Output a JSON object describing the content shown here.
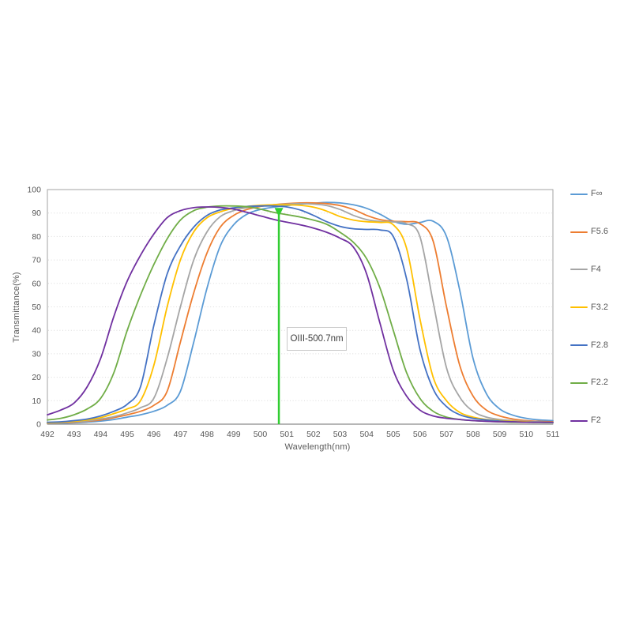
{
  "chart_data": {
    "type": "line",
    "title": "",
    "xlabel": "Wavelength(nm)",
    "ylabel": "Transmittance(%)",
    "xlim": [
      492,
      511
    ],
    "ylim": [
      0,
      100
    ],
    "x_ticks": [
      492,
      493,
      494,
      495,
      496,
      497,
      498,
      499,
      500,
      501,
      502,
      503,
      504,
      505,
      506,
      507,
      508,
      509,
      510,
      511
    ],
    "y_ticks": [
      0,
      10,
      20,
      30,
      40,
      50,
      60,
      70,
      80,
      90,
      100
    ],
    "grid": "horizontal-dotted",
    "legend_position": "right",
    "x_start": 492,
    "x_step": 0.5,
    "series": [
      {
        "name": "F∞",
        "color": "#5B9BD5",
        "values": [
          0.3,
          0.4,
          0.6,
          0.9,
          1.3,
          2,
          3,
          4,
          5.5,
          8,
          14,
          35,
          58,
          76,
          85,
          89.5,
          91.5,
          92.5,
          93.2,
          93.8,
          94.2,
          94.5,
          94.3,
          93.5,
          92,
          89.5,
          86.5,
          85.2,
          86,
          86.5,
          80,
          57,
          28,
          13,
          6.5,
          3.8,
          2.5,
          1.8,
          1.5
        ]
      },
      {
        "name": "F5.6",
        "color": "#ED7D31",
        "values": [
          0.4,
          0.6,
          0.8,
          1.2,
          1.8,
          2.8,
          4,
          5.5,
          8,
          14,
          35,
          56,
          73,
          84,
          89,
          91.5,
          92.8,
          93.5,
          94,
          94.3,
          94.3,
          94,
          93.2,
          91.5,
          89,
          87.2,
          86.5,
          86.3,
          85.5,
          78,
          50,
          25,
          12,
          6,
          3.5,
          2.2,
          1.5,
          1.2,
          1
        ]
      },
      {
        "name": "F4",
        "color": "#A5A5A5",
        "values": [
          0.5,
          0.7,
          1,
          1.4,
          2.2,
          3.2,
          4.8,
          7,
          11,
          28,
          50,
          70,
          82,
          88.5,
          91,
          92.3,
          93,
          93.5,
          93.8,
          94,
          93.8,
          93.2,
          91.5,
          89,
          87.2,
          86.4,
          86.2,
          85.5,
          80,
          52,
          24,
          11.5,
          5.5,
          3,
          2,
          1.5,
          1.2,
          1,
          0.8
        ]
      },
      {
        "name": "F3.2",
        "color": "#FFC000",
        "values": [
          0.6,
          0.8,
          1.2,
          1.8,
          2.8,
          4.5,
          6.5,
          10,
          25,
          50,
          70,
          82,
          88,
          90.5,
          92,
          92.8,
          93.3,
          93.5,
          93.5,
          93.3,
          92.5,
          90.8,
          88.5,
          87,
          86.3,
          86,
          85,
          75,
          45,
          20,
          10,
          5,
          3,
          2,
          1.5,
          1.2,
          1,
          0.8,
          0.8
        ]
      },
      {
        "name": "F2.8",
        "color": "#4472C4",
        "values": [
          0.8,
          1,
          1.5,
          2.2,
          3.5,
          5.5,
          8.5,
          16,
          42,
          64,
          76,
          84,
          89,
          91.3,
          92.2,
          92.8,
          93,
          93,
          92.6,
          91.3,
          89,
          86.3,
          84.3,
          83.3,
          83,
          82.8,
          80,
          62,
          32,
          15,
          7.5,
          4,
          2.5,
          1.8,
          1.3,
          1,
          0.8,
          0.8,
          0.7
        ]
      },
      {
        "name": "F2.2",
        "color": "#70AD47",
        "values": [
          1.8,
          2.5,
          4,
          6.5,
          11,
          22,
          40,
          55,
          68,
          79,
          87,
          91,
          92.5,
          93,
          93,
          92.7,
          91.7,
          90.3,
          89.3,
          88.3,
          87,
          85.2,
          81.8,
          77.5,
          70.5,
          58,
          40,
          22,
          11,
          5.5,
          3,
          2,
          1.5,
          1.2,
          1,
          0.8,
          0.8,
          0.7,
          0.7
        ]
      },
      {
        "name": "F2",
        "color": "#7030A0",
        "values": [
          4,
          6,
          9,
          16,
          28,
          46,
          61,
          72,
          81,
          88,
          91,
          92.3,
          92.6,
          92.4,
          91.7,
          90.3,
          88.8,
          87.3,
          86.1,
          85,
          83.6,
          81.8,
          79.3,
          75.5,
          64,
          43,
          23,
          12,
          6,
          3.5,
          2.5,
          2,
          1.5,
          1.2,
          1,
          1,
          0.8,
          0.8,
          0.8
        ]
      }
    ],
    "annotation": {
      "label": "OIII-500.7nm",
      "x": 500.7,
      "line_top_pct": 90.5,
      "line_color": "#32CD32"
    },
    "style": {
      "axis_color": "#a3a3a3",
      "grid_color": "#dadada",
      "tick_color": "#595959"
    }
  }
}
